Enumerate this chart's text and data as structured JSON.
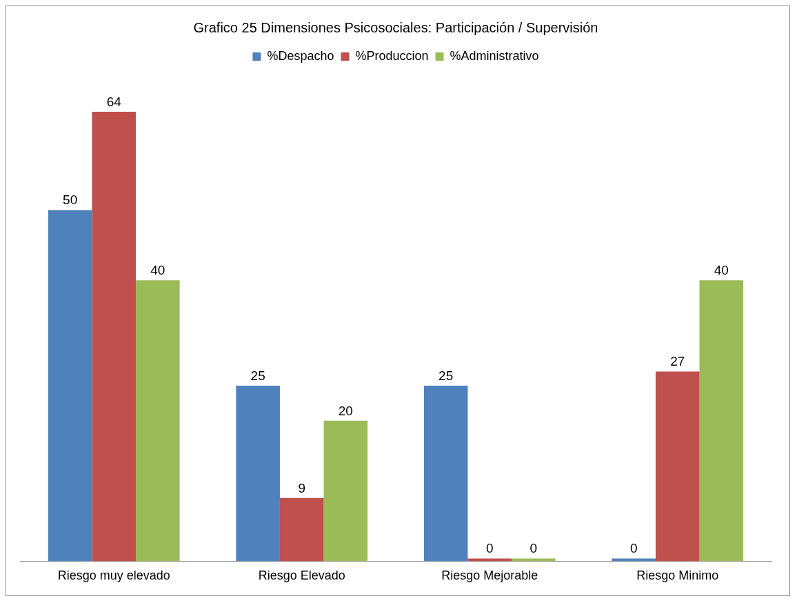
{
  "chart_data": {
    "type": "bar",
    "title": "Grafico 25 Dimensiones Psicosociales: Participación / Supervisión",
    "categories": [
      "Riesgo muy elevado",
      "Riesgo Elevado",
      "Riesgo Mejorable",
      "Riesgo Minimo"
    ],
    "series": [
      {
        "name": "%Despacho",
        "color": "#4f81bd",
        "values": [
          50,
          25,
          25,
          0
        ]
      },
      {
        "name": "%Produccion",
        "color": "#c0504d",
        "values": [
          64,
          9,
          0,
          27
        ]
      },
      {
        "name": "%Administrativo",
        "color": "#9bbb59",
        "values": [
          40,
          20,
          0,
          40
        ]
      }
    ],
    "data_labels": true,
    "legend": "top",
    "grid": false
  }
}
